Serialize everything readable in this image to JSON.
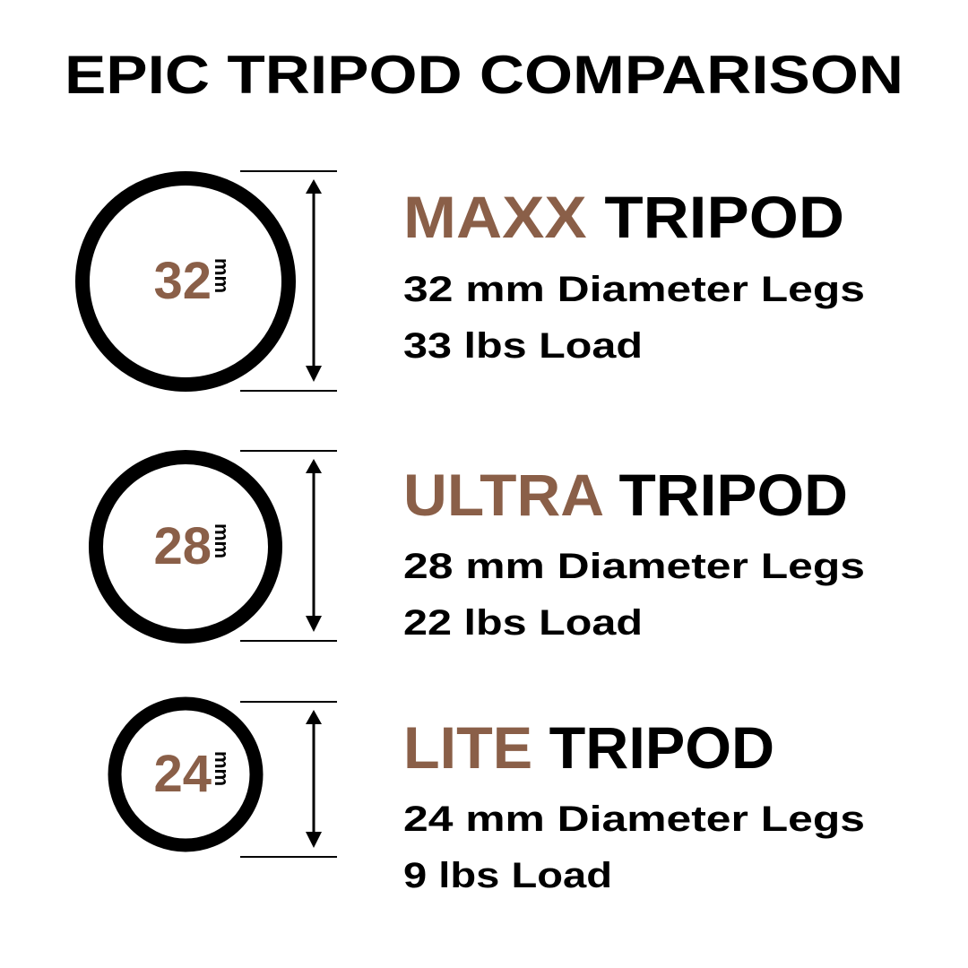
{
  "title": "EPIC TRIPOD COMPARISON",
  "colors": {
    "accent": "#8a5f48",
    "text": "#000000",
    "background": "#ffffff"
  },
  "unit": "mm",
  "tripods": [
    {
      "model": "MAXX",
      "suffix": "TRIPOD",
      "diameter": "32",
      "diameter_text": "32 mm Diameter Legs",
      "load_text": "33 lbs Load"
    },
    {
      "model": "ULTRA",
      "suffix": "TRIPOD",
      "diameter": "28",
      "diameter_text": "28 mm Diameter Legs",
      "load_text": "22 lbs Load"
    },
    {
      "model": "LITE",
      "suffix": "TRIPOD",
      "diameter": "24",
      "diameter_text": "24 mm Diameter Legs",
      "load_text": "9 lbs Load"
    }
  ]
}
